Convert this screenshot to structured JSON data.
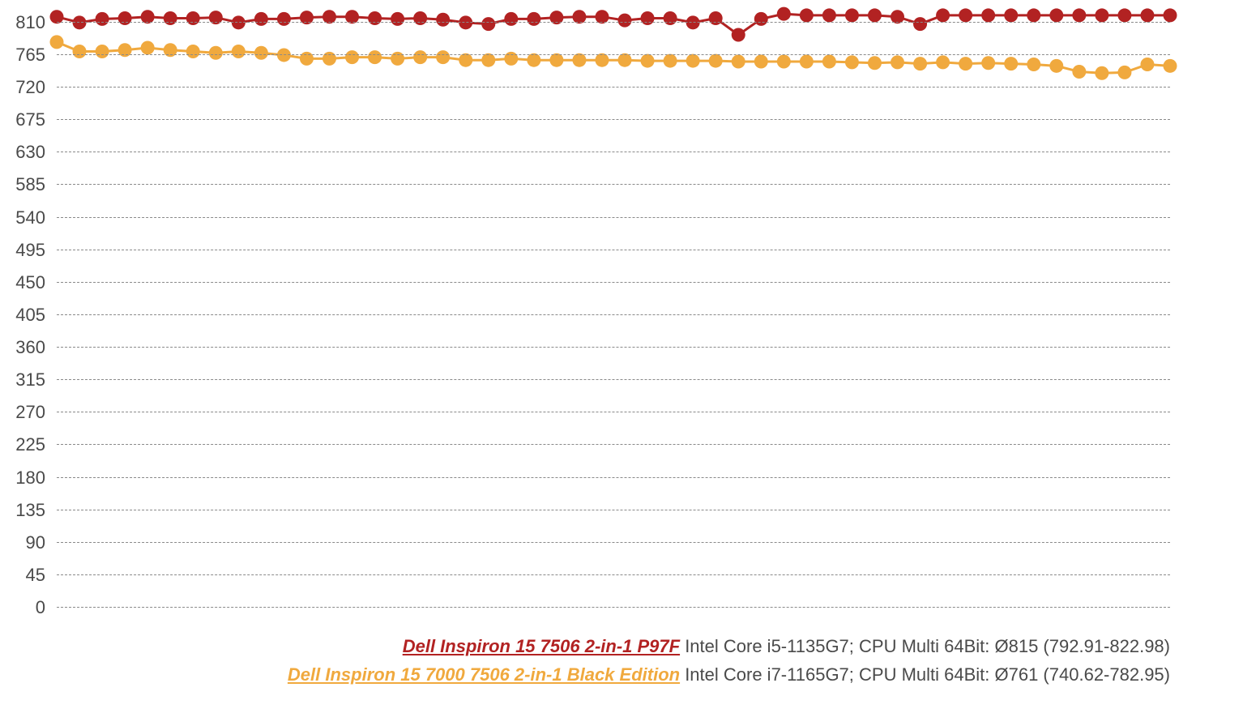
{
  "chart": {
    "type": "line",
    "background_color": "#ffffff",
    "grid_color": "#8a8a8a",
    "grid_dash": "5,5",
    "grid_width": 1.4,
    "tick_label_color": "#4a4a4a",
    "tick_label_fontsize": 22,
    "ylim": [
      0,
      830
    ],
    "ytick_step": 45,
    "yticks": [
      0,
      45,
      90,
      135,
      180,
      225,
      270,
      315,
      360,
      405,
      450,
      495,
      540,
      585,
      630,
      675,
      720,
      765,
      810
    ],
    "x_count": 50,
    "marker_radius": 8.5,
    "line_width": 3,
    "series": [
      {
        "id": "s1",
        "color": "#b22222",
        "values": [
          818,
          810,
          815,
          816,
          818,
          816,
          816,
          817,
          810,
          815,
          815,
          817,
          818,
          818,
          816,
          815,
          816,
          814,
          810,
          808,
          815,
          815,
          817,
          818,
          818,
          813,
          816,
          816,
          810,
          816,
          793,
          815,
          822,
          820,
          820,
          820,
          820,
          818,
          808,
          820,
          820,
          820,
          820,
          820,
          820,
          820,
          820,
          820,
          820,
          820
        ]
      },
      {
        "id": "s2",
        "color": "#f0a93e",
        "values": [
          783,
          770,
          770,
          772,
          775,
          772,
          770,
          768,
          770,
          768,
          765,
          760,
          760,
          762,
          762,
          760,
          762,
          762,
          758,
          758,
          760,
          758,
          758,
          758,
          758,
          758,
          757,
          757,
          757,
          757,
          756,
          756,
          756,
          756,
          756,
          755,
          754,
          755,
          753,
          755,
          753,
          754,
          753,
          752,
          750,
          742,
          740,
          741,
          752,
          750
        ]
      }
    ]
  },
  "legend": {
    "fontsize": 22,
    "detail_color": "#4a4a4a",
    "rows": [
      {
        "color": "#b22222",
        "link_text": "Dell Inspiron 15 7506 2-in-1 P97F",
        "detail": " Intel Core i5-1135G7; CPU Multi 64Bit: Ø815 (792.91-822.98)"
      },
      {
        "color": "#f0a93e",
        "link_text": "Dell Inspiron 15 7000 7506 2-in-1 Black Edition",
        "detail": " Intel Core i7-1165G7; CPU Multi 64Bit: Ø761 (740.62-782.95)"
      }
    ]
  }
}
